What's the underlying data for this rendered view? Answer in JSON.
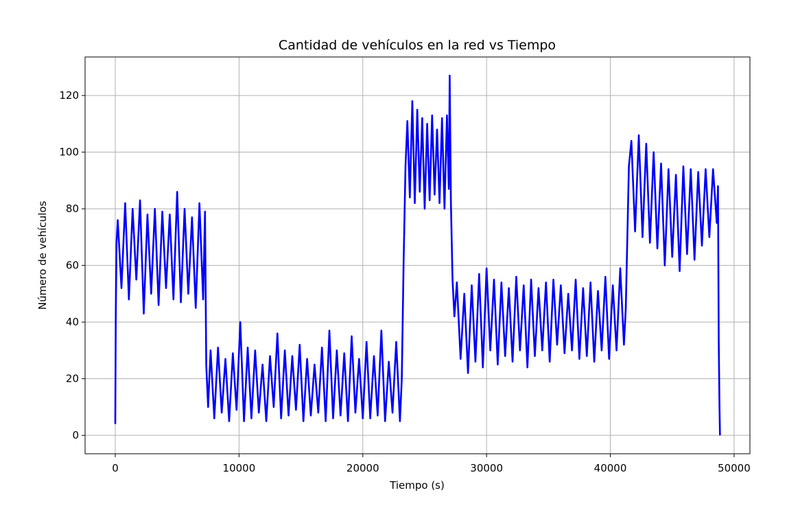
{
  "chart_data": {
    "type": "line",
    "title": "Cantidad de vehículos en la red vs Tiempo",
    "xlabel": "Tiempo (s)",
    "ylabel": "Número de vehículos",
    "xlim": [
      -2440,
      51280
    ],
    "ylim": [
      -6.5,
      133.6
    ],
    "xticks": [
      0,
      10000,
      20000,
      30000,
      40000,
      50000
    ],
    "yticks": [
      0,
      20,
      40,
      60,
      80,
      100,
      120
    ],
    "grid": true,
    "series": [
      {
        "color": "#0000ff",
        "x": [
          0,
          40,
          100,
          200,
          500,
          800,
          1100,
          1400,
          1700,
          2000,
          2300,
          2600,
          2900,
          3200,
          3500,
          3800,
          4100,
          4400,
          4700,
          5000,
          5300,
          5600,
          5900,
          6200,
          6500,
          6800,
          7100,
          7250,
          7350,
          7500,
          7700,
          8000,
          8300,
          8600,
          8900,
          9200,
          9500,
          9800,
          10100,
          10400,
          10700,
          11000,
          11300,
          11600,
          11900,
          12200,
          12500,
          12800,
          13100,
          13400,
          13700,
          14000,
          14300,
          14600,
          14900,
          15200,
          15500,
          15800,
          16100,
          16400,
          16700,
          17000,
          17300,
          17600,
          17900,
          18200,
          18500,
          18800,
          19100,
          19400,
          19700,
          20000,
          20300,
          20600,
          20900,
          21200,
          21500,
          21800,
          22100,
          22400,
          22700,
          23000,
          23150,
          23300,
          23450,
          23600,
          23800,
          24000,
          24200,
          24400,
          24600,
          24800,
          25000,
          25200,
          25400,
          25600,
          25800,
          26000,
          26200,
          26400,
          26600,
          26800,
          26950,
          27020,
          27120,
          27250,
          27400,
          27600,
          27900,
          28200,
          28500,
          28800,
          29100,
          29400,
          29700,
          30000,
          30300,
          30600,
          30900,
          31200,
          31500,
          31800,
          32100,
          32400,
          32700,
          33000,
          33300,
          33600,
          33900,
          34200,
          34500,
          34800,
          35100,
          35400,
          35700,
          36000,
          36300,
          36600,
          36900,
          37200,
          37500,
          37800,
          38100,
          38400,
          38700,
          39000,
          39300,
          39600,
          39900,
          40200,
          40500,
          40800,
          41100,
          41250,
          41400,
          41500,
          41700,
          42000,
          42300,
          42600,
          42900,
          43200,
          43500,
          43800,
          44100,
          44400,
          44700,
          45000,
          45300,
          45600,
          45900,
          46200,
          46500,
          46800,
          47100,
          47400,
          47700,
          48000,
          48300,
          48600,
          48700,
          48760,
          48820,
          48860
        ],
        "values": [
          4,
          42,
          68,
          76,
          52,
          82,
          48,
          80,
          55,
          83,
          43,
          78,
          50,
          80,
          46,
          79,
          52,
          78,
          48,
          86,
          47,
          80,
          50,
          77,
          45,
          82,
          48,
          79,
          25,
          10,
          30,
          6,
          31,
          8,
          27,
          5,
          29,
          9,
          40,
          5,
          31,
          6,
          30,
          8,
          25,
          5,
          28,
          10,
          36,
          6,
          30,
          7,
          28,
          9,
          32,
          5,
          27,
          7,
          25,
          8,
          31,
          5,
          37,
          6,
          30,
          7,
          29,
          5,
          35,
          8,
          27,
          6,
          33,
          6,
          28,
          7,
          37,
          5,
          26,
          8,
          33,
          5,
          20,
          62,
          95,
          111,
          84,
          118,
          82,
          115,
          86,
          112,
          80,
          110,
          83,
          113,
          85,
          108,
          82,
          112,
          80,
          113,
          87,
          127,
          82,
          55,
          42,
          54,
          27,
          50,
          22,
          53,
          26,
          57,
          24,
          59,
          30,
          55,
          25,
          54,
          28,
          52,
          26,
          56,
          30,
          53,
          24,
          55,
          28,
          52,
          30,
          54,
          26,
          55,
          32,
          53,
          29,
          50,
          30,
          55,
          27,
          52,
          28,
          54,
          26,
          51,
          30,
          56,
          27,
          53,
          30,
          59,
          32,
          45,
          75,
          95,
          104,
          72,
          106,
          70,
          103,
          68,
          100,
          66,
          96,
          60,
          94,
          63,
          92,
          58,
          95,
          64,
          94,
          62,
          93,
          67,
          94,
          70,
          94,
          75,
          88,
          33,
          10,
          0
        ]
      }
    ]
  }
}
